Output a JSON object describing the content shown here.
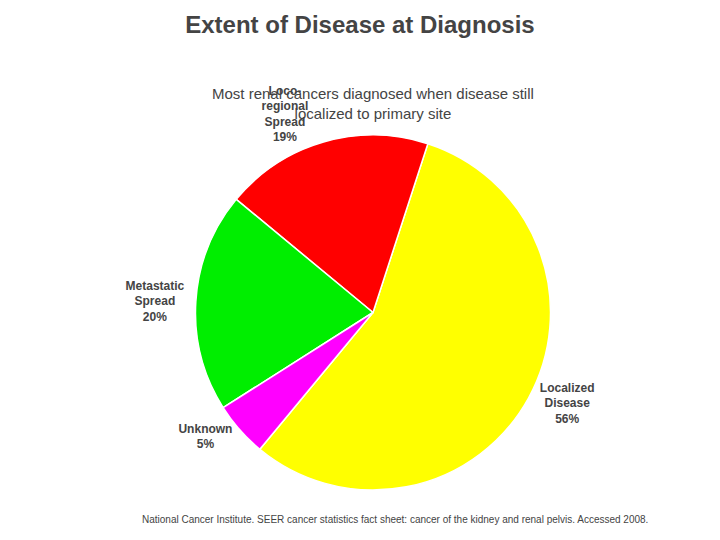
{
  "chart_data": {
    "type": "pie",
    "title": "Extent of Disease at Diagnosis",
    "subtitle": "Most renal cancers diagnosed when disease still\nlocalized to primary site",
    "footnote": "National Cancer Institute. SEER cancer statistics fact sheet: cancer of the kidney and renal pelvis. Accessed 2008.",
    "categories": [
      "Localized\nDisease",
      "Loco-\nregional\nSpread",
      "Metastatic\nSpread",
      "Unknown"
    ],
    "values": [
      56,
      19,
      20,
      5
    ],
    "value_labels": [
      "56%",
      "19%",
      "20%",
      "5%"
    ],
    "colors": [
      "#FFFF00",
      "#FF0000",
      "#00EE00",
      "#FF00FF"
    ],
    "data_labels": true
  }
}
